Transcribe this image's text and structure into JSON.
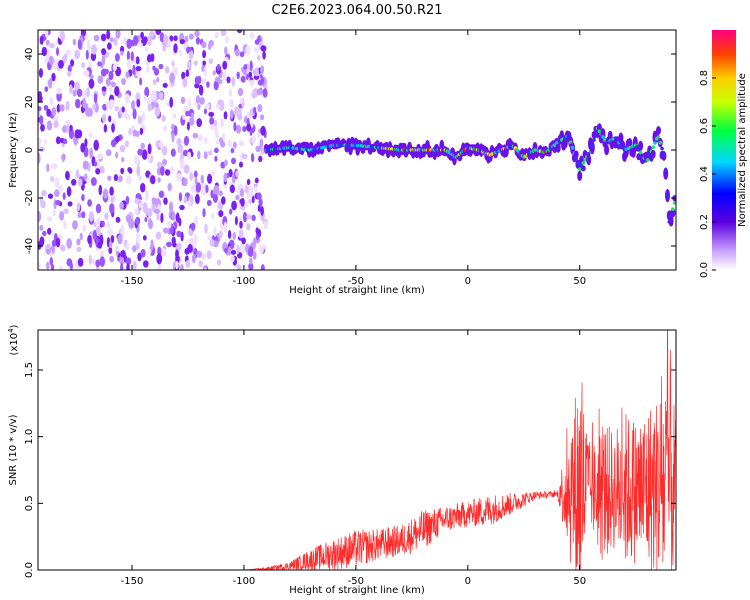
{
  "title": "C2E6.2023.064.00.50.R21",
  "colors": {
    "snr_line": "#ff2a2a",
    "colormap": [
      "#f2f2ff",
      "#8a2be2",
      "#0000ff",
      "#00e5ff",
      "#00ff00",
      "#ffff00",
      "#ff8000",
      "#ff0000",
      "#ff0066"
    ]
  },
  "chart_data": [
    {
      "type": "heatmap",
      "title": "",
      "xlabel": "Height of straight line (km)",
      "ylabel": "Frequency (Hz)",
      "xlim": [
        -192,
        93
      ],
      "ylim": [
        -50,
        50
      ],
      "xticks": [
        -150,
        -100,
        -50,
        0,
        50
      ],
      "yticks": [
        -40,
        -20,
        0,
        20,
        40
      ],
      "colorbar": {
        "label": "Normalized spectral amplitude",
        "range": [
          0,
          1
        ],
        "ticks": [
          "0.0",
          "0.2",
          "0.4",
          "0.6",
          "0.8"
        ]
      },
      "noise_region_x": [
        -192,
        -90
      ],
      "signal_track": {
        "x": [
          -90,
          -80,
          -70,
          -60,
          -50,
          -40,
          -30,
          -20,
          -10,
          -5,
          0,
          5,
          10,
          15,
          20,
          25,
          30,
          35,
          40,
          45,
          50,
          55,
          58,
          62,
          66,
          70,
          75,
          80,
          85,
          88,
          90,
          93
        ],
        "y": [
          0,
          1,
          0,
          2,
          2,
          1,
          0,
          0,
          0,
          -3,
          1,
          0,
          -2,
          0,
          2,
          -3,
          0,
          -1,
          3,
          6,
          -8,
          0,
          9,
          3,
          5,
          0,
          2,
          -5,
          6,
          -3,
          -30,
          -20
        ]
      }
    },
    {
      "type": "line",
      "title": "",
      "xlabel": "Height of straight line (km)",
      "ylabel": "SNR (10 * v/v)",
      "yscale_label": "(x10",
      "yscale_exp": "4",
      "yscale_close": ")",
      "xlim": [
        -192,
        93
      ],
      "ylim": [
        0,
        1.8
      ],
      "xticks": [
        -150,
        -100,
        -50,
        0,
        50
      ],
      "yticks": [
        "0.0",
        "0.5",
        "1.0",
        "1.5"
      ],
      "series": [
        {
          "x": [
            -192,
            -150,
            -100,
            -90,
            -80,
            -70,
            -60,
            -50,
            -40,
            -30,
            -20,
            -10,
            0,
            10,
            20,
            30,
            40,
            45,
            50,
            55,
            60,
            65,
            70,
            75,
            80,
            85,
            90,
            93
          ],
          "y": [
            0.0,
            0.0,
            0.0,
            0.01,
            0.03,
            0.08,
            0.12,
            0.16,
            0.19,
            0.22,
            0.3,
            0.38,
            0.42,
            0.45,
            0.5,
            0.56,
            0.57,
            0.6,
            0.62,
            0.6,
            0.59,
            0.6,
            0.6,
            0.6,
            0.6,
            0.62,
            0.65,
            0.6
          ],
          "envelope_x": [
            -192,
            -100,
            -90,
            -80,
            -70,
            -60,
            -50,
            -40,
            -30,
            -20,
            -10,
            0,
            10,
            20,
            30,
            40,
            45,
            50,
            55,
            60,
            65,
            70,
            75,
            80,
            85,
            90,
            93
          ],
          "envelope_amp": [
            0.0,
            0.0,
            0.01,
            0.03,
            0.08,
            0.12,
            0.14,
            0.12,
            0.12,
            0.15,
            0.1,
            0.1,
            0.12,
            0.08,
            0.03,
            0.02,
            0.5,
            0.9,
            0.3,
            0.55,
            0.45,
            0.6,
            0.55,
            0.65,
            0.7,
            1.1,
            0.5
          ]
        }
      ]
    }
  ]
}
